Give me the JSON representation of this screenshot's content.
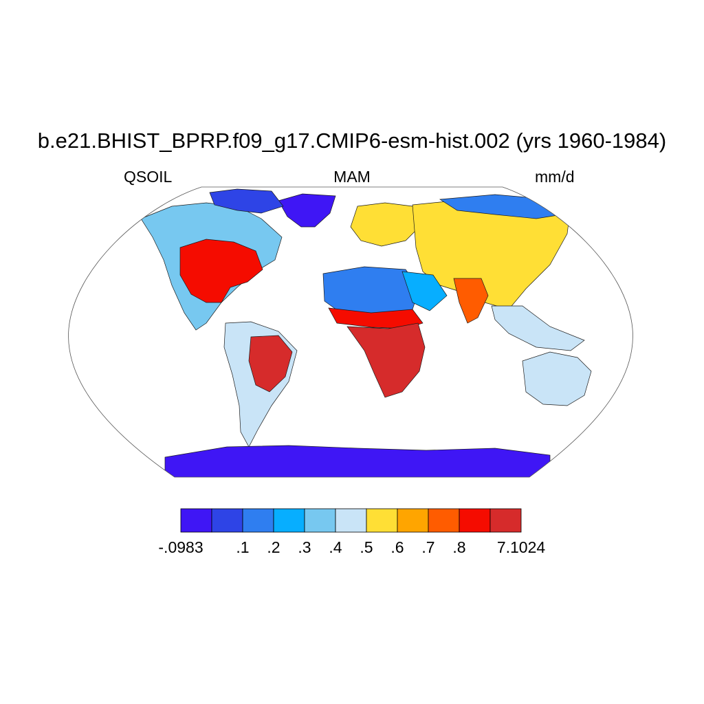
{
  "title": "b.e21.BHIST_BPRP.f09_g17.CMIP6-esm-hist.002 (yrs 1960-1984)",
  "left_label": "QSOIL",
  "center_label": "MAM",
  "right_label": "mm/d",
  "colorbar": {
    "colors": [
      "#3f16f5",
      "#2e44e6",
      "#2f7ef0",
      "#07aeff",
      "#77c8f0",
      "#c9e4f7",
      "#ffdf35",
      "#ffa500",
      "#ff5c00",
      "#f50c00",
      "#d62b2b"
    ],
    "tick_labels": [
      "-.0983",
      ".1",
      ".2",
      ".3",
      ".4",
      ".5",
      ".6",
      ".7",
      ".8",
      "7.1024"
    ]
  },
  "map": {
    "projection": "robinson",
    "ocean_color": "#ffffff",
    "regions": [
      {
        "name": "North America",
        "level": 4
      },
      {
        "name": "Eastern United States",
        "level": 9
      },
      {
        "name": "Greenland",
        "level": 0
      },
      {
        "name": "Canadian Arctic",
        "level": 1
      },
      {
        "name": "South America",
        "level": 5
      },
      {
        "name": "Amazon / Brazil",
        "level": 10
      },
      {
        "name": "Europe",
        "level": 6
      },
      {
        "name": "Asia",
        "level": 6
      },
      {
        "name": "Siberia",
        "level": 2
      },
      {
        "name": "Sahara",
        "level": 2
      },
      {
        "name": "Sahel",
        "level": 9
      },
      {
        "name": "Southern Africa",
        "level": 10
      },
      {
        "name": "Arabia",
        "level": 3
      },
      {
        "name": "India",
        "level": 8
      },
      {
        "name": "Southeast Asia",
        "level": 5
      },
      {
        "name": "Australia",
        "level": 5
      },
      {
        "name": "Antarctica",
        "level": 0
      }
    ]
  }
}
